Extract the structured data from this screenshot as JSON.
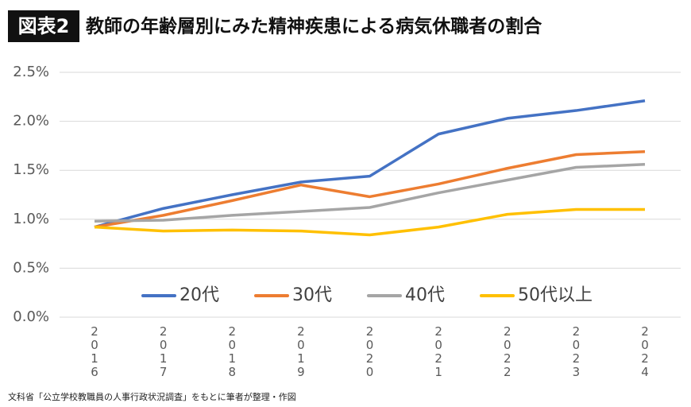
{
  "chart_data": {
    "type": "line",
    "badge": "図表2",
    "title": "教師の年齢層別にみた精神疾患による病気休職者の割合",
    "source": "文科省「公立学校教職員の人事行政状況調査」をもとに筆者が整理・作図",
    "categories": [
      "2016",
      "2017",
      "2018",
      "2019",
      "2020",
      "2021",
      "2022",
      "2023",
      "2024"
    ],
    "series": [
      {
        "name": "20代",
        "color": "#4472c4",
        "values": [
          0.92,
          1.11,
          1.25,
          1.38,
          1.44,
          1.87,
          2.03,
          2.11,
          2.21
        ]
      },
      {
        "name": "30代",
        "color": "#ed7d31",
        "values": [
          0.92,
          1.04,
          1.19,
          1.35,
          1.23,
          1.36,
          1.52,
          1.66,
          1.69
        ]
      },
      {
        "name": "40代",
        "color": "#a5a5a5",
        "values": [
          0.98,
          0.99,
          1.04,
          1.08,
          1.12,
          1.27,
          1.4,
          1.53,
          1.56
        ]
      },
      {
        "name": "50代以上",
        "color": "#ffc000",
        "values": [
          0.92,
          0.88,
          0.89,
          0.88,
          0.84,
          0.92,
          1.05,
          1.1,
          1.1
        ]
      }
    ],
    "ylim": [
      0,
      2.5
    ],
    "yticks": [
      {
        "value": 0,
        "label": "0.0%"
      },
      {
        "value": 0.5,
        "label": "0.5%"
      },
      {
        "value": 1,
        "label": "1.0%"
      },
      {
        "value": 1.5,
        "label": "1.5%"
      },
      {
        "value": 2,
        "label": "2.0%"
      },
      {
        "value": 2.5,
        "label": "2.5%"
      }
    ],
    "grid": true,
    "legend": "bottom"
  }
}
